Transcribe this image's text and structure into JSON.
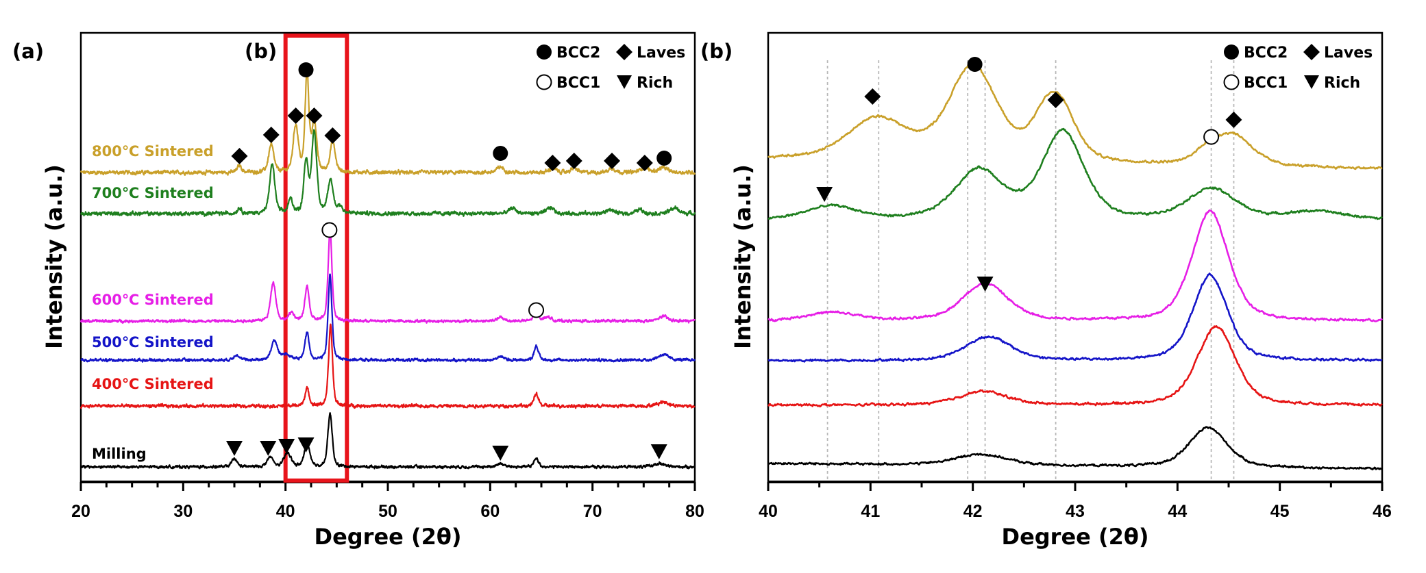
{
  "chart_data": [
    {
      "panel_label": "(a)",
      "type": "line",
      "xlabel": "Degree (2θ)",
      "ylabel": "Intensity (a.u.)",
      "xlim": [
        20,
        80
      ],
      "xticks": [
        20,
        30,
        40,
        50,
        60,
        70,
        80
      ],
      "y_units": "arbitrary, stacked offsets",
      "zoom_box": {
        "label": "(b)",
        "x_range": [
          40,
          46
        ],
        "color": "#E8141B"
      },
      "legend": {
        "placement": "top-right",
        "items": [
          {
            "symbol": "filled-circle",
            "label": "BCC2"
          },
          {
            "symbol": "diamond",
            "label": "Laves"
          },
          {
            "symbol": "open-circle",
            "label": "BCC1"
          },
          {
            "symbol": "down-triangle",
            "label": "Rich"
          }
        ]
      },
      "series": [
        {
          "name": "800℃ Sintered",
          "color": "#C9A02A",
          "baseline": 100,
          "noise": 3.5,
          "peaks": [
            [
              35.5,
              10,
              0.25
            ],
            [
              38.6,
              40,
              0.3
            ],
            [
              41.0,
              68,
              0.3
            ],
            [
              42.1,
              143,
              0.22
            ],
            [
              42.8,
              72,
              0.28
            ],
            [
              44.6,
              44,
              0.3
            ],
            [
              61.0,
              8,
              0.4
            ],
            [
              66.1,
              6,
              0.4
            ],
            [
              68.2,
              6,
              0.4
            ],
            [
              71.9,
              6,
              0.4
            ],
            [
              75.1,
              7,
              0.5
            ],
            [
              76.9,
              7,
              0.5
            ]
          ]
        },
        {
          "name": "700℃ Sintered",
          "color": "#1E7F1E",
          "baseline": 40,
          "noise": 3.5,
          "peaks": [
            [
              35.5,
              8,
              0.25
            ],
            [
              38.7,
              72,
              0.3
            ],
            [
              40.5,
              20,
              0.25
            ],
            [
              42.0,
              75,
              0.25
            ],
            [
              42.8,
              118,
              0.3
            ],
            [
              44.4,
              48,
              0.3
            ],
            [
              45.3,
              10,
              0.3
            ],
            [
              62.2,
              8,
              0.4
            ],
            [
              65.9,
              9,
              0.4
            ],
            [
              71.7,
              6,
              0.4
            ],
            [
              74.6,
              6,
              0.4
            ],
            [
              78.0,
              8,
              0.5
            ]
          ]
        },
        {
          "name": "600℃ Sintered",
          "color": "#E61EE6",
          "baseline": -117,
          "noise": 2.5,
          "peaks": [
            [
              38.8,
              57,
              0.3
            ],
            [
              40.6,
              12,
              0.3
            ],
            [
              42.1,
              50,
              0.25
            ],
            [
              44.35,
              135,
              0.22
            ],
            [
              61.0,
              5,
              0.4
            ],
            [
              64.5,
              18,
              0.25
            ],
            [
              65.6,
              6,
              0.4
            ],
            [
              76.9,
              7,
              0.5
            ]
          ]
        },
        {
          "name": "500℃ Sintered",
          "color": "#1414C8",
          "baseline": -174,
          "noise": 2.5,
          "peaks": [
            [
              35.2,
              8,
              0.3
            ],
            [
              38.9,
              28,
              0.35
            ],
            [
              40.0,
              8,
              0.5
            ],
            [
              42.1,
              40,
              0.25
            ],
            [
              44.35,
              125,
              0.22
            ],
            [
              61.0,
              5,
              0.4
            ],
            [
              64.5,
              21,
              0.25
            ],
            [
              76.9,
              8,
              0.6
            ]
          ]
        },
        {
          "name": "400℃ Sintered",
          "color": "#E61414",
          "baseline": -241,
          "noise": 3.0,
          "peaks": [
            [
              42.1,
              25,
              0.25
            ],
            [
              44.4,
              118,
              0.22
            ],
            [
              64.5,
              18,
              0.25
            ],
            [
              76.9,
              6,
              0.6
            ]
          ]
        },
        {
          "name": "Milling",
          "color": "#000000",
          "baseline": -330,
          "noise": 2.5,
          "peaks": [
            [
              35.0,
              12,
              0.3
            ],
            [
              38.5,
              14,
              0.35
            ],
            [
              40.2,
              20,
              0.4
            ],
            [
              42.1,
              35,
              0.3
            ],
            [
              44.35,
              78,
              0.25
            ],
            [
              61.0,
              5,
              0.4
            ],
            [
              64.5,
              13,
              0.25
            ],
            [
              76.5,
              5,
              0.6
            ]
          ]
        }
      ],
      "markers": [
        {
          "phase": "diamond",
          "x": 35.5,
          "y": 124
        },
        {
          "phase": "diamond",
          "x": 38.6,
          "y": 155
        },
        {
          "phase": "diamond",
          "x": 41.0,
          "y": 183
        },
        {
          "phase": "diamond",
          "x": 42.8,
          "y": 183
        },
        {
          "phase": "diamond",
          "x": 44.6,
          "y": 154
        },
        {
          "phase": "filled-circle",
          "x": 42.0,
          "y": 250
        },
        {
          "phase": "filled-circle",
          "x": 61.0,
          "y": 128
        },
        {
          "phase": "diamond",
          "x": 66.1,
          "y": 114
        },
        {
          "phase": "diamond",
          "x": 68.2,
          "y": 117
        },
        {
          "phase": "diamond",
          "x": 71.9,
          "y": 117
        },
        {
          "phase": "diamond",
          "x": 75.1,
          "y": 114
        },
        {
          "phase": "filled-circle",
          "x": 77.0,
          "y": 121
        },
        {
          "phase": "open-circle",
          "x": 44.3,
          "y": 16
        },
        {
          "phase": "open-circle",
          "x": 64.5,
          "y": -101
        },
        {
          "phase": "down-triangle",
          "x": 35.0,
          "y": -303
        },
        {
          "phase": "down-triangle",
          "x": 38.3,
          "y": -303
        },
        {
          "phase": "down-triangle",
          "x": 40.1,
          "y": -300
        },
        {
          "phase": "down-triangle",
          "x": 42.0,
          "y": -298
        },
        {
          "phase": "down-triangle",
          "x": 61.0,
          "y": -310
        },
        {
          "phase": "down-triangle",
          "x": 76.5,
          "y": -308
        }
      ]
    },
    {
      "panel_label": "(b)",
      "type": "line",
      "xlabel": "Degree (2θ)",
      "ylabel": "Intensity (a.u.)",
      "xlim": [
        40,
        46
      ],
      "xticks": [
        40,
        41,
        42,
        43,
        44,
        45,
        46
      ],
      "y_units": "arbitrary, stacked offsets",
      "legend": {
        "placement": "top-right",
        "items": [
          {
            "symbol": "filled-circle",
            "label": "BCC2"
          },
          {
            "symbol": "diamond",
            "label": "Laves"
          },
          {
            "symbol": "open-circle",
            "label": "BCC1"
          },
          {
            "symbol": "down-triangle",
            "label": "Rich"
          }
        ]
      },
      "reference_lines": [
        40.58,
        41.08,
        41.95,
        42.12,
        42.81,
        44.33,
        44.55
      ],
      "series": [
        {
          "name": "800℃ Sintered",
          "color": "#C9A02A",
          "baseline": 105,
          "slope": 14,
          "noise": 2.2,
          "peaks": [
            [
              41.07,
              60,
              0.35
            ],
            [
              42.0,
              138,
              0.28
            ],
            [
              42.72,
              58,
              0.18
            ],
            [
              42.88,
              55,
              0.18
            ],
            [
              44.55,
              44,
              0.22
            ],
            [
              44.3,
              18,
              0.15
            ]
          ]
        },
        {
          "name": "700℃ Sintered",
          "color": "#1E7F1E",
          "baseline": 30,
          "slope": 0,
          "noise": 2.2,
          "peaks": [
            [
              40.62,
              20,
              0.3
            ],
            [
              42.06,
              72,
              0.28
            ],
            [
              42.88,
              128,
              0.24
            ],
            [
              44.33,
              45,
              0.28
            ],
            [
              45.35,
              12,
              0.35
            ]
          ]
        },
        {
          "name": "600℃ Sintered",
          "color": "#E61EE6",
          "baseline": -117,
          "slope": 0,
          "noise": 2.2,
          "peaks": [
            [
              40.62,
              12,
              0.3
            ],
            [
              42.12,
              55,
              0.26
            ],
            [
              44.32,
              160,
              0.21
            ]
          ]
        },
        {
          "name": "500℃ Sintered",
          "color": "#1414C8",
          "baseline": -175,
          "slope": 0,
          "noise": 2.2,
          "peaks": [
            [
              42.15,
              35,
              0.26
            ],
            [
              44.32,
              125,
              0.2
            ]
          ]
        },
        {
          "name": "400℃ Sintered",
          "color": "#E61414",
          "baseline": -240,
          "slope": 0,
          "noise": 2.2,
          "peaks": [
            [
              42.1,
              20,
              0.28
            ],
            [
              44.38,
              115,
              0.22
            ]
          ]
        },
        {
          "name": "Milling",
          "color": "#000000",
          "baseline": -333,
          "slope": 8,
          "noise": 2.0,
          "peaks": [
            [
              42.08,
              16,
              0.3
            ],
            [
              44.3,
              58,
              0.22
            ]
          ]
        }
      ],
      "markers": [
        {
          "phase": "diamond",
          "x": 41.02,
          "y": 211
        },
        {
          "phase": "filled-circle",
          "x": 42.02,
          "y": 258
        },
        {
          "phase": "diamond",
          "x": 42.81,
          "y": 206
        },
        {
          "phase": "diamond",
          "x": 44.55,
          "y": 177
        },
        {
          "phase": "open-circle",
          "x": 44.33,
          "y": 152
        },
        {
          "phase": "down-triangle",
          "x": 40.55,
          "y": 68
        },
        {
          "phase": "down-triangle",
          "x": 42.12,
          "y": -63
        }
      ]
    }
  ],
  "series_labels": [
    "800℃ Sintered",
    "700℃ Sintered",
    "600℃ Sintered",
    "500℃ Sintered",
    "400℃ Sintered",
    "Milling"
  ],
  "legend_labels": {
    "bcc2": "BCC2",
    "laves": "Laves",
    "bcc1": "BCC1",
    "rich": "Rich"
  },
  "panel_labels": {
    "a": "(a)",
    "b_inset": "(b)",
    "b": "(b)"
  },
  "axis_titles": {
    "x": "Degree (2θ)",
    "y": "Intensity (a.u.)"
  }
}
